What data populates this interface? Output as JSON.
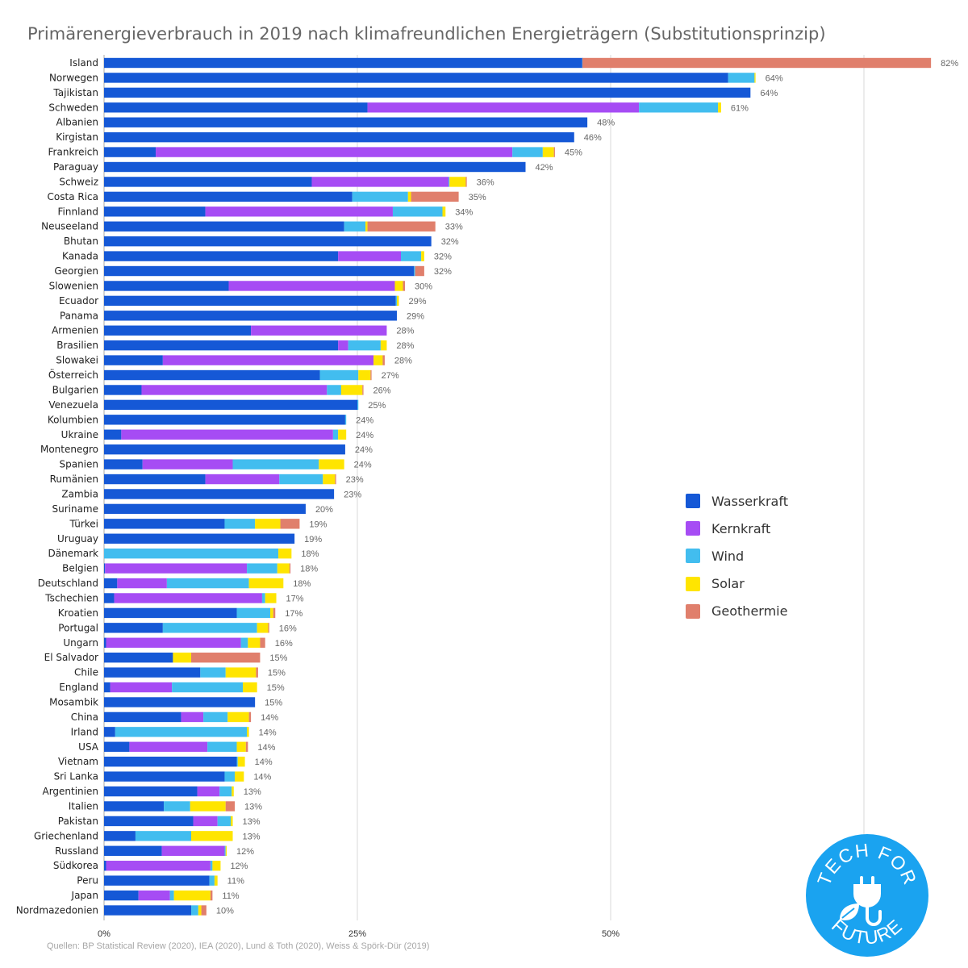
{
  "title": "Primärenergieverbrauch in 2019 nach klimafreundlichen Energieträgern (Substitutionsprinzip)",
  "source": "Quellen: BP Statistical Review (2020), IEA (2020), Lund & Toth (2020), Weiss & Spörk-Dür (2019)",
  "logo": {
    "text_top": "TECH FOR",
    "text_bottom": "FUTURE",
    "color": "#1aa3f0"
  },
  "colors": {
    "Wasserkraft": "#1558d6",
    "Kernkraft": "#a64cf4",
    "Wind": "#42bdef",
    "Solar": "#ffe500",
    "Geothermie": "#e07f6c"
  },
  "chart_data": {
    "type": "bar",
    "orientation": "horizontal",
    "stacked": true,
    "xlim": [
      0,
      82
    ],
    "xticks": [
      {
        "value": 0,
        "label": "0%"
      },
      {
        "value": 25,
        "label": "25%"
      },
      {
        "value": 50,
        "label": "50%"
      },
      {
        "value": 75,
        "label": ""
      }
    ],
    "grid": true,
    "legend_position": "right",
    "series": [
      {
        "name": "Wasserkraft",
        "color": "#1558d6"
      },
      {
        "name": "Kernkraft",
        "color": "#a64cf4"
      },
      {
        "name": "Wind",
        "color": "#42bdef"
      },
      {
        "name": "Solar",
        "color": "#ffe500"
      },
      {
        "name": "Geothermie",
        "color": "#e07f6c"
      }
    ],
    "countries": [
      {
        "name": "Island",
        "total_label": "82%",
        "values": [
          47.2,
          0,
          0.02,
          0,
          34.4
        ]
      },
      {
        "name": "Norwegen",
        "total_label": "64%",
        "values": [
          61.6,
          0,
          2.6,
          0.1,
          0
        ]
      },
      {
        "name": "Tajikistan",
        "total_label": "64%",
        "values": [
          63.8,
          0,
          0,
          0,
          0
        ]
      },
      {
        "name": "Schweden",
        "total_label": "61%",
        "values": [
          26.0,
          26.8,
          7.8,
          0.3,
          0
        ]
      },
      {
        "name": "Albanien",
        "total_label": "48%",
        "values": [
          47.7,
          0,
          0,
          0,
          0
        ]
      },
      {
        "name": "Kirgistan",
        "total_label": "46%",
        "values": [
          46.4,
          0,
          0,
          0,
          0
        ]
      },
      {
        "name": "Frankreich",
        "total_label": "45%",
        "values": [
          5.1,
          35.2,
          3.0,
          1.1,
          0.1
        ]
      },
      {
        "name": "Paraguay",
        "total_label": "42%",
        "values": [
          41.6,
          0,
          0,
          0,
          0
        ]
      },
      {
        "name": "Schweiz",
        "total_label": "36%",
        "values": [
          20.5,
          13.5,
          0.1,
          1.6,
          0.1
        ]
      },
      {
        "name": "Costa Rica",
        "total_label": "35%",
        "values": [
          24.5,
          0,
          5.5,
          0.3,
          4.7
        ]
      },
      {
        "name": "Finnland",
        "total_label": "34%",
        "values": [
          10.0,
          18.5,
          4.9,
          0.3,
          0
        ]
      },
      {
        "name": "Neuseeland",
        "total_label": "33%",
        "values": [
          23.7,
          0,
          2.1,
          0.2,
          6.7
        ]
      },
      {
        "name": "Bhutan",
        "total_label": "32%",
        "values": [
          32.3,
          0,
          0,
          0,
          0
        ]
      },
      {
        "name": "Kanada",
        "total_label": "32%",
        "values": [
          23.1,
          6.2,
          2.0,
          0.3,
          0
        ]
      },
      {
        "name": "Georgien",
        "total_label": "32%",
        "values": [
          30.6,
          0,
          0.1,
          0,
          0.9
        ]
      },
      {
        "name": "Slowenien",
        "total_label": "30%",
        "values": [
          12.3,
          16.4,
          0,
          0.8,
          0.2
        ]
      },
      {
        "name": "Ecuador",
        "total_label": "29%",
        "values": [
          28.8,
          0,
          0.1,
          0.2,
          0
        ]
      },
      {
        "name": "Panama",
        "total_label": "29%",
        "values": [
          28.9,
          0,
          0,
          0,
          0
        ]
      },
      {
        "name": "Armenien",
        "total_label": "28%",
        "values": [
          14.5,
          13.4,
          0,
          0,
          0
        ]
      },
      {
        "name": "Brasilien",
        "total_label": "28%",
        "values": [
          23.1,
          1.0,
          3.2,
          0.6,
          0
        ]
      },
      {
        "name": "Slowakei",
        "total_label": "28%",
        "values": [
          5.8,
          20.8,
          0,
          0.9,
          0.2
        ]
      },
      {
        "name": "Österreich",
        "total_label": "27%",
        "values": [
          21.3,
          0,
          3.8,
          1.2,
          0.1
        ]
      },
      {
        "name": "Bulgarien",
        "total_label": "26%",
        "values": [
          3.7,
          18.3,
          1.4,
          2.1,
          0.1
        ]
      },
      {
        "name": "Venezuela",
        "total_label": "25%",
        "values": [
          25.0,
          0,
          0.1,
          0,
          0
        ]
      },
      {
        "name": "Kolumbien",
        "total_label": "24%",
        "values": [
          23.8,
          0,
          0.1,
          0,
          0
        ]
      },
      {
        "name": "Ukraine",
        "total_label": "24%",
        "values": [
          1.7,
          20.9,
          0.5,
          0.8,
          0
        ]
      },
      {
        "name": "Montenegro",
        "total_label": "24%",
        "values": [
          23.8,
          0,
          0,
          0,
          0
        ]
      },
      {
        "name": "Spanien",
        "total_label": "24%",
        "values": [
          3.8,
          8.9,
          8.5,
          2.5,
          0
        ]
      },
      {
        "name": "Rumänien",
        "total_label": "23%",
        "values": [
          10.0,
          7.3,
          4.3,
          1.2,
          0.1
        ]
      },
      {
        "name": "Zambia",
        "total_label": "23%",
        "values": [
          22.7,
          0,
          0,
          0,
          0
        ]
      },
      {
        "name": "Suriname",
        "total_label": "20%",
        "values": [
          19.9,
          0,
          0,
          0,
          0
        ]
      },
      {
        "name": "Türkei",
        "total_label": "19%",
        "values": [
          11.9,
          0,
          3.0,
          2.5,
          1.9
        ]
      },
      {
        "name": "Uruguay",
        "total_label": "19%",
        "values": [
          18.8,
          0,
          0,
          0,
          0
        ]
      },
      {
        "name": "Dänemark",
        "total_label": "18%",
        "values": [
          0,
          0,
          17.2,
          1.3,
          0
        ]
      },
      {
        "name": "Belgien",
        "total_label": "18%",
        "values": [
          0.1,
          14.0,
          3.0,
          1.2,
          0.1
        ]
      },
      {
        "name": "Deutschland",
        "total_label": "18%",
        "values": [
          1.3,
          4.9,
          8.1,
          3.4,
          0
        ]
      },
      {
        "name": "Tschechien",
        "total_label": "17%",
        "values": [
          1.0,
          14.6,
          0.3,
          1.1,
          0
        ]
      },
      {
        "name": "Kroatien",
        "total_label": "17%",
        "values": [
          13.1,
          0,
          3.3,
          0.3,
          0.2
        ]
      },
      {
        "name": "Portugal",
        "total_label": "16%",
        "values": [
          5.8,
          0,
          9.3,
          1.1,
          0.1
        ]
      },
      {
        "name": "Ungarn",
        "total_label": "16%",
        "values": [
          0.2,
          13.3,
          0.7,
          1.2,
          0.5
        ]
      },
      {
        "name": "El Salvador",
        "total_label": "15%",
        "values": [
          6.8,
          0,
          0,
          1.8,
          6.8
        ]
      },
      {
        "name": "Chile",
        "total_label": "15%",
        "values": [
          9.5,
          0,
          2.5,
          3.0,
          0.2
        ]
      },
      {
        "name": "England",
        "total_label": "15%",
        "values": [
          0.6,
          6.1,
          7.0,
          1.4,
          0
        ]
      },
      {
        "name": "Mosambik",
        "total_label": "15%",
        "values": [
          14.9,
          0,
          0,
          0,
          0
        ]
      },
      {
        "name": "China",
        "total_label": "14%",
        "values": [
          7.6,
          2.2,
          2.4,
          2.1,
          0.2
        ]
      },
      {
        "name": "Irland",
        "total_label": "14%",
        "values": [
          1.1,
          0,
          13.0,
          0.2,
          0
        ]
      },
      {
        "name": "USA",
        "total_label": "14%",
        "values": [
          2.5,
          7.7,
          2.9,
          0.9,
          0.2
        ]
      },
      {
        "name": "Vietnam",
        "total_label": "14%",
        "values": [
          13.1,
          0,
          0.1,
          0.7,
          0
        ]
      },
      {
        "name": "Sri Lanka",
        "total_label": "14%",
        "values": [
          11.9,
          0,
          1.0,
          0.9,
          0
        ]
      },
      {
        "name": "Argentinien",
        "total_label": "13%",
        "values": [
          9.2,
          2.2,
          1.2,
          0.2,
          0
        ]
      },
      {
        "name": "Italien",
        "total_label": "13%",
        "values": [
          5.9,
          0,
          2.6,
          3.5,
          0.9
        ]
      },
      {
        "name": "Pakistan",
        "total_label": "13%",
        "values": [
          8.8,
          2.4,
          1.3,
          0.2,
          0
        ]
      },
      {
        "name": "Griechenland",
        "total_label": "13%",
        "values": [
          3.1,
          0,
          5.5,
          4.1,
          0
        ]
      },
      {
        "name": "Russland",
        "total_label": "12%",
        "values": [
          5.7,
          6.2,
          0.1,
          0.1,
          0
        ]
      },
      {
        "name": "Südkorea",
        "total_label": "12%",
        "values": [
          0.2,
          10.3,
          0.2,
          0.8,
          0
        ]
      },
      {
        "name": "Peru",
        "total_label": "11%",
        "values": [
          10.4,
          0,
          0.5,
          0.3,
          0
        ]
      },
      {
        "name": "Japan",
        "total_label": "11%",
        "values": [
          3.4,
          3.1,
          0.4,
          3.6,
          0.2
        ]
      },
      {
        "name": "Nordmazedonien",
        "total_label": "10%",
        "values": [
          8.6,
          0,
          0.7,
          0.3,
          0.5
        ]
      }
    ]
  }
}
